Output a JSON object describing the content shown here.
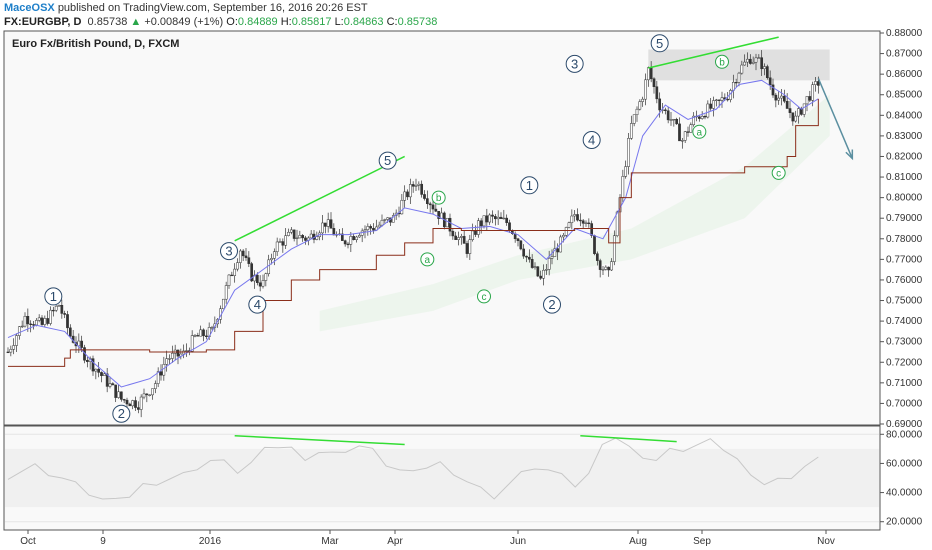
{
  "header": {
    "author": "MaceOSX",
    "published": "published on TradingView.com, September 16, 2016 20:26 EST",
    "symbol": "FX:EURGBP, D",
    "last": "0.85738",
    "change": "+0.00849 (+1%)",
    "o_label": "O:",
    "o_value": "0.84889",
    "h_label": "H:",
    "h_value": "0.85817",
    "l_label": "L:",
    "l_value": "0.84863",
    "c_label": "C:",
    "c_value": "0.85738"
  },
  "colors": {
    "up_arrow": "#2aa64a",
    "trendline": "#33dd33",
    "wave_circle": "#2c4a6b",
    "ma_blue": "#7777ee",
    "ma_brown": "#8b2e1a",
    "projection_arrow": "#5b8fa0",
    "zone": "#d9d9d9"
  },
  "chart_data": [
    {
      "type": "candlestick",
      "title": "Euro Fx/British Pound, D, FXCM",
      "y_ticks": [
        "0.88000",
        "0.87000",
        "0.86000",
        "0.85000",
        "0.84000",
        "0.83000",
        "0.82000",
        "0.81000",
        "0.80000",
        "0.79000",
        "0.78000",
        "0.77000",
        "0.76000",
        "0.75000",
        "0.74000",
        "0.73000",
        "0.72000",
        "0.71000",
        "0.70000",
        "0.69000"
      ],
      "ylim": [
        0.69,
        0.88
      ],
      "x_ticks": [
        "Oct",
        "9",
        "2016",
        "Mar",
        "Apr",
        "Jun",
        "Aug",
        "Sep",
        "Nov"
      ],
      "price_path": [
        [
          0,
          0.725
        ],
        [
          6,
          0.742
        ],
        [
          12,
          0.738
        ],
        [
          18,
          0.748
        ],
        [
          22,
          0.733
        ],
        [
          28,
          0.722
        ],
        [
          34,
          0.712
        ],
        [
          40,
          0.702
        ],
        [
          46,
          0.7
        ],
        [
          52,
          0.71
        ],
        [
          56,
          0.722
        ],
        [
          62,
          0.724
        ],
        [
          66,
          0.732
        ],
        [
          72,
          0.735
        ],
        [
          78,
          0.76
        ],
        [
          82,
          0.775
        ],
        [
          86,
          0.762
        ],
        [
          90,
          0.758
        ],
        [
          94,
          0.776
        ],
        [
          100,
          0.782
        ],
        [
          106,
          0.78
        ],
        [
          112,
          0.788
        ],
        [
          118,
          0.778
        ],
        [
          124,
          0.784
        ],
        [
          130,
          0.786
        ],
        [
          136,
          0.79
        ],
        [
          140,
          0.8
        ],
        [
          144,
          0.808
        ],
        [
          148,
          0.8
        ],
        [
          152,
          0.792
        ],
        [
          158,
          0.782
        ],
        [
          162,
          0.775
        ],
        [
          166,
          0.787
        ],
        [
          170,
          0.79
        ],
        [
          176,
          0.788
        ],
        [
          180,
          0.78
        ],
        [
          184,
          0.768
        ],
        [
          188,
          0.76
        ],
        [
          192,
          0.772
        ],
        [
          196,
          0.78
        ],
        [
          200,
          0.792
        ],
        [
          204,
          0.79
        ],
        [
          208,
          0.77
        ],
        [
          212,
          0.762
        ],
        [
          216,
          0.8
        ],
        [
          220,
          0.835
        ],
        [
          224,
          0.85
        ],
        [
          226,
          0.862
        ],
        [
          230,
          0.845
        ],
        [
          234,
          0.838
        ],
        [
          238,
          0.828
        ],
        [
          242,
          0.838
        ],
        [
          246,
          0.842
        ],
        [
          250,
          0.845
        ],
        [
          254,
          0.85
        ],
        [
          258,
          0.862
        ],
        [
          262,
          0.868
        ],
        [
          266,
          0.865
        ],
        [
          270,
          0.852
        ],
        [
          274,
          0.845
        ],
        [
          278,
          0.838
        ],
        [
          282,
          0.848
        ],
        [
          286,
          0.856
        ]
      ],
      "blue_line": [
        [
          0,
          0.732
        ],
        [
          10,
          0.738
        ],
        [
          20,
          0.735
        ],
        [
          30,
          0.72
        ],
        [
          40,
          0.708
        ],
        [
          50,
          0.712
        ],
        [
          60,
          0.722
        ],
        [
          70,
          0.73
        ],
        [
          80,
          0.755
        ],
        [
          90,
          0.765
        ],
        [
          100,
          0.775
        ],
        [
          110,
          0.782
        ],
        [
          120,
          0.782
        ],
        [
          130,
          0.784
        ],
        [
          140,
          0.795
        ],
        [
          150,
          0.792
        ],
        [
          160,
          0.785
        ],
        [
          170,
          0.786
        ],
        [
          180,
          0.782
        ],
        [
          190,
          0.77
        ],
        [
          200,
          0.785
        ],
        [
          210,
          0.78
        ],
        [
          218,
          0.8
        ],
        [
          224,
          0.83
        ],
        [
          232,
          0.845
        ],
        [
          240,
          0.838
        ],
        [
          250,
          0.843
        ],
        [
          258,
          0.855
        ],
        [
          266,
          0.857
        ],
        [
          274,
          0.85
        ],
        [
          280,
          0.843
        ],
        [
          286,
          0.848
        ]
      ],
      "brown_line": [
        [
          0,
          0.718
        ],
        [
          20,
          0.722
        ],
        [
          22,
          0.726
        ],
        [
          50,
          0.725
        ],
        [
          70,
          0.726
        ],
        [
          80,
          0.735
        ],
        [
          90,
          0.75
        ],
        [
          100,
          0.76
        ],
        [
          110,
          0.765
        ],
        [
          130,
          0.772
        ],
        [
          140,
          0.778
        ],
        [
          150,
          0.785
        ],
        [
          160,
          0.784
        ],
        [
          180,
          0.784
        ],
        [
          200,
          0.785
        ],
        [
          212,
          0.778
        ],
        [
          216,
          0.8
        ],
        [
          220,
          0.812
        ],
        [
          260,
          0.815
        ],
        [
          275,
          0.82
        ],
        [
          278,
          0.835
        ],
        [
          286,
          0.848
        ]
      ],
      "resistance_zone": {
        "from": 226,
        "to": 290,
        "low": 0.857,
        "high": 0.872
      },
      "trendlines": [
        {
          "from": [
            80,
            0.779
          ],
          "to": [
            140,
            0.82
          ]
        },
        {
          "from": [
            226,
            0.863
          ],
          "to": [
            272,
            0.878
          ]
        }
      ],
      "projection_arrow": {
        "from": [
          286,
          0.858
        ],
        "to": [
          298,
          0.819
        ]
      },
      "wave_labels": [
        {
          "t": 16,
          "p": 0.752,
          "label": "1",
          "kind": "number"
        },
        {
          "t": 40,
          "p": 0.695,
          "label": "2",
          "kind": "number"
        },
        {
          "t": 78,
          "p": 0.774,
          "label": "3",
          "kind": "number"
        },
        {
          "t": 88,
          "p": 0.748,
          "label": "4",
          "kind": "number"
        },
        {
          "t": 134,
          "p": 0.818,
          "label": "5",
          "kind": "number"
        },
        {
          "t": 152,
          "p": 0.8,
          "label": "b",
          "kind": "letter"
        },
        {
          "t": 148,
          "p": 0.77,
          "label": "a",
          "kind": "letter"
        },
        {
          "t": 168,
          "p": 0.752,
          "label": "c",
          "kind": "letter"
        },
        {
          "t": 184,
          "p": 0.806,
          "label": "1",
          "kind": "number"
        },
        {
          "t": 192,
          "p": 0.748,
          "label": "2",
          "kind": "number"
        },
        {
          "t": 200,
          "p": 0.865,
          "label": "3",
          "kind": "number"
        },
        {
          "t": 206,
          "p": 0.828,
          "label": "4",
          "kind": "number"
        },
        {
          "t": 230,
          "p": 0.875,
          "label": "5",
          "kind": "number"
        },
        {
          "t": 252,
          "p": 0.866,
          "label": "b",
          "kind": "letter"
        },
        {
          "t": 244,
          "p": 0.832,
          "label": "a",
          "kind": "letter"
        },
        {
          "t": 272,
          "p": 0.812,
          "label": "c",
          "kind": "letter"
        }
      ]
    },
    {
      "type": "line",
      "title": "",
      "y_ticks": [
        "80.0000",
        "60.0000",
        "40.0000",
        "20.0000"
      ],
      "ylim": [
        15,
        85
      ],
      "rsi_values": [
        52,
        55,
        58,
        54,
        50,
        45,
        40,
        35,
        33,
        38,
        45,
        48,
        50,
        52,
        58,
        62,
        60,
        55,
        60,
        68,
        72,
        70,
        65,
        68,
        66,
        70,
        72,
        68,
        60,
        55,
        52,
        58,
        60,
        55,
        48,
        42,
        38,
        45,
        52,
        58,
        55,
        50,
        45,
        52,
        76,
        78,
        70,
        66,
        62,
        68,
        70,
        72,
        74,
        70,
        62,
        55,
        46,
        48,
        52,
        58,
        62
      ],
      "divergence_lines": [
        {
          "from": [
            80,
            79
          ],
          "to": [
            140,
            73
          ]
        },
        {
          "from": [
            202,
            79
          ],
          "to": [
            236,
            75
          ]
        }
      ],
      "grid": true
    }
  ]
}
